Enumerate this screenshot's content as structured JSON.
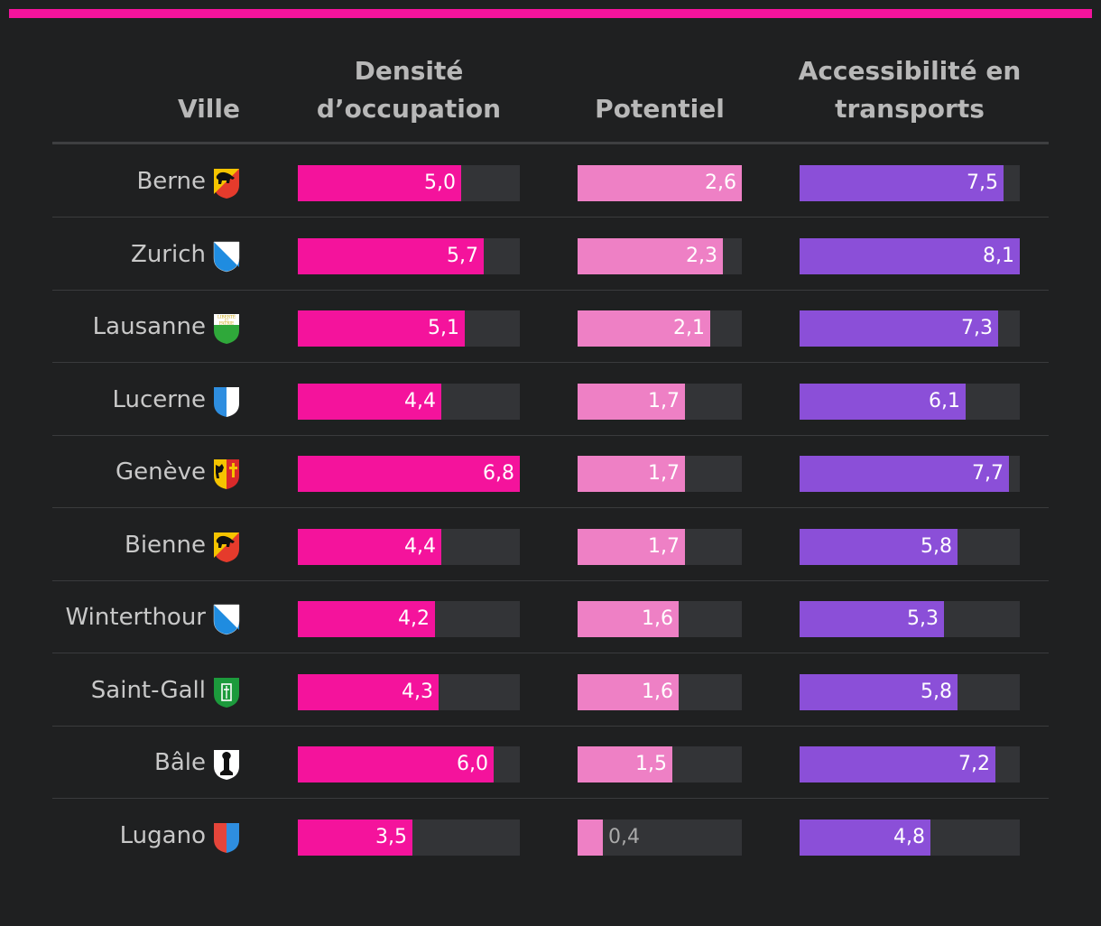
{
  "chart_data": {
    "type": "bar",
    "columns": [
      {
        "key": "densite",
        "label_line1": "Densité",
        "label_line2": "d’occupation",
        "color": "#f4139c",
        "max": 6.8
      },
      {
        "key": "potentiel",
        "label_line1": "",
        "label_line2": "Potentiel",
        "color": "#ee80c5",
        "max": 2.6
      },
      {
        "key": "access",
        "label_line1": "Accessibilité en",
        "label_line2": "transports",
        "color": "#8b4fd8",
        "max": 8.1
      }
    ],
    "header_ville": "Ville",
    "rows": [
      {
        "city": "Berne",
        "crest": "bern-crest-icon",
        "values": [
          5.0,
          2.6,
          7.5
        ],
        "labels": [
          "5,0",
          "2,6",
          "7,5"
        ]
      },
      {
        "city": "Zurich",
        "crest": "zurich-crest-icon",
        "values": [
          5.7,
          2.3,
          8.1
        ],
        "labels": [
          "5,7",
          "2,3",
          "8,1"
        ]
      },
      {
        "city": "Lausanne",
        "crest": "vaud-crest-icon",
        "values": [
          5.1,
          2.1,
          7.3
        ],
        "labels": [
          "5,1",
          "2,1",
          "7,3"
        ]
      },
      {
        "city": "Lucerne",
        "crest": "lucerne-crest-icon",
        "values": [
          4.4,
          1.7,
          6.1
        ],
        "labels": [
          "4,4",
          "1,7",
          "6,1"
        ]
      },
      {
        "city": "Genève",
        "crest": "geneva-crest-icon",
        "values": [
          6.8,
          1.7,
          7.7
        ],
        "labels": [
          "6,8",
          "1,7",
          "7,7"
        ]
      },
      {
        "city": "Bienne",
        "crest": "bern-crest-icon",
        "values": [
          4.4,
          1.7,
          5.8
        ],
        "labels": [
          "4,4",
          "1,7",
          "5,8"
        ]
      },
      {
        "city": "Winterthour",
        "crest": "zurich-crest-icon",
        "values": [
          4.2,
          1.6,
          5.3
        ],
        "labels": [
          "4,2",
          "1,6",
          "5,3"
        ]
      },
      {
        "city": "Saint-Gall",
        "crest": "st-gallen-crest-icon",
        "values": [
          4.3,
          1.6,
          5.8
        ],
        "labels": [
          "4,3",
          "1,6",
          "5,8"
        ]
      },
      {
        "city": "Bâle",
        "crest": "basel-crest-icon",
        "values": [
          6.0,
          1.5,
          7.2
        ],
        "labels": [
          "6,0",
          "1,5",
          "7,2"
        ]
      },
      {
        "city": "Lugano",
        "crest": "ticino-crest-icon",
        "values": [
          3.5,
          0.4,
          4.8
        ],
        "labels": [
          "3,5",
          "0,4",
          "4,8"
        ]
      }
    ],
    "crest_texts": {
      "vaud_line1": "LIBERTÉ",
      "vaud_line2": "ET",
      "vaud_line3": "PATRIE"
    },
    "colors": {
      "accent": "#f4139c",
      "track": "#333437",
      "background": "#1f2021"
    }
  }
}
